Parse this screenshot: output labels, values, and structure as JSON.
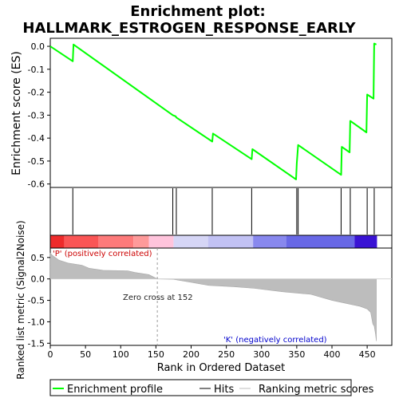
{
  "chart_data": {
    "type": "line",
    "title_line1": "Enrichment plot:",
    "title_line2": "HALLMARK_ESTROGEN_RESPONSE_EARLY",
    "es_panel": {
      "ylabel": "Enrichment score (ES)",
      "ylim": [
        -0.615,
        0.035
      ],
      "yticks": [
        "0.0",
        "-0.1",
        "-0.2",
        "-0.3",
        "-0.4",
        "-0.5",
        "-0.6"
      ],
      "ytick_values": [
        0.0,
        -0.1,
        -0.2,
        -0.3,
        -0.4,
        -0.5,
        -0.6
      ],
      "series_name": "Enrichment profile",
      "line_color": "#00ff00",
      "points": [
        [
          0,
          0.0
        ],
        [
          32,
          -0.065
        ],
        [
          33,
          0.008
        ],
        [
          174,
          -0.3
        ],
        [
          178,
          -0.305
        ],
        [
          179,
          -0.31
        ],
        [
          230,
          -0.415
        ],
        [
          231,
          -0.38
        ],
        [
          286,
          -0.492
        ],
        [
          287,
          -0.448
        ],
        [
          349,
          -0.58
        ],
        [
          350,
          -0.51
        ],
        [
          352,
          -0.43
        ],
        [
          413,
          -0.56
        ],
        [
          414,
          -0.438
        ],
        [
          425,
          -0.462
        ],
        [
          426,
          -0.325
        ],
        [
          449,
          -0.375
        ],
        [
          450,
          -0.21
        ],
        [
          459,
          -0.228
        ],
        [
          460,
          0.012
        ],
        [
          463,
          0.008
        ]
      ]
    },
    "hits": [
      32,
      174,
      179,
      230,
      286,
      350,
      352,
      413,
      426,
      450,
      460
    ],
    "hits_label": "Hits",
    "metric_panel": {
      "ylabel": "Ranked list metric (Signal2Noise)",
      "ylim": [
        -1.55,
        0.72
      ],
      "yticks": [
        "0.5",
        "0.0",
        "-0.5",
        "-1.0",
        "-1.5"
      ],
      "ytick_values": [
        0.5,
        0.0,
        -0.5,
        -1.0,
        -1.5
      ],
      "series_name": "Ranking metric scores",
      "profile": [
        [
          0,
          0.6
        ],
        [
          3,
          0.55
        ],
        [
          12,
          0.44
        ],
        [
          25,
          0.37
        ],
        [
          45,
          0.32
        ],
        [
          55,
          0.25
        ],
        [
          75,
          0.2
        ],
        [
          110,
          0.19
        ],
        [
          120,
          0.15
        ],
        [
          140,
          0.1
        ],
        [
          152,
          0.0
        ],
        [
          175,
          -0.01
        ],
        [
          200,
          -0.08
        ],
        [
          225,
          -0.15
        ],
        [
          260,
          -0.18
        ],
        [
          290,
          -0.22
        ],
        [
          330,
          -0.3
        ],
        [
          370,
          -0.36
        ],
        [
          400,
          -0.5
        ],
        [
          440,
          -0.64
        ],
        [
          450,
          -0.7
        ],
        [
          455,
          -0.78
        ],
        [
          458,
          -1.05
        ],
        [
          460,
          -1.1
        ],
        [
          462,
          -1.3
        ],
        [
          463,
          -1.45
        ]
      ],
      "zero_cross_label": "Zero cross at 152",
      "zero_cross": 152,
      "pos_label": "'P' (positively correlated)",
      "neg_label": "'K' (negatively correlated)"
    },
    "xlabel": "Rank in Ordered Dataset",
    "xlim": [
      0,
      485
    ],
    "xticks": [
      "0",
      "50",
      "100",
      "150",
      "200",
      "250",
      "300",
      "350",
      "400",
      "450"
    ],
    "xtick_values": [
      0,
      50,
      100,
      150,
      200,
      250,
      300,
      350,
      400,
      450
    ],
    "n_genes": 464,
    "heatmap_segments": [
      {
        "start": 0,
        "end": 20,
        "color": "#ee2b2b"
      },
      {
        "start": 20,
        "end": 68,
        "color": "#fa5555"
      },
      {
        "start": 68,
        "end": 118,
        "color": "#fd7a7a"
      },
      {
        "start": 118,
        "end": 140,
        "color": "#fe9a9a"
      },
      {
        "start": 140,
        "end": 175,
        "color": "#ffc4dc"
      },
      {
        "start": 175,
        "end": 224,
        "color": "#d6d6f6"
      },
      {
        "start": 224,
        "end": 288,
        "color": "#c2c2f4"
      },
      {
        "start": 288,
        "end": 335,
        "color": "#8888ee"
      },
      {
        "start": 335,
        "end": 432,
        "color": "#6868e6"
      },
      {
        "start": 432,
        "end": 464,
        "color": "#3a13d4"
      }
    ],
    "legend": {
      "placement": "bottom",
      "items": [
        "Enrichment profile",
        "Hits",
        "Ranking metric scores"
      ]
    }
  }
}
